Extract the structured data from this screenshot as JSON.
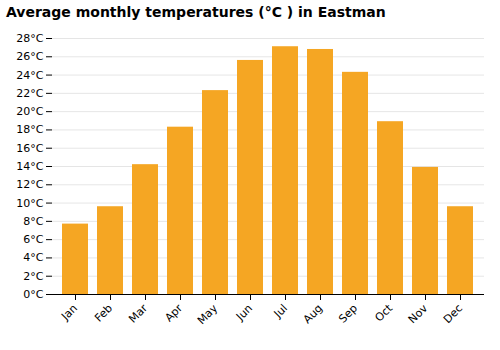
{
  "chart_data": {
    "type": "bar",
    "title": "Average monthly temperatures (°C ) in Eastman",
    "categories": [
      "Jan",
      "Feb",
      "Mar",
      "Apr",
      "May",
      "Jun",
      "Jul",
      "Aug",
      "Sep",
      "Oct",
      "Nov",
      "Dec"
    ],
    "values": [
      7.7,
      9.6,
      14.2,
      18.3,
      22.3,
      25.6,
      27.1,
      26.8,
      24.3,
      18.9,
      13.9,
      9.6
    ],
    "color": "#F5A623",
    "ylim": [
      0,
      28
    ],
    "yticks": [
      {
        "value": 0,
        "label": "0°C"
      },
      {
        "value": 2,
        "label": "2°C"
      },
      {
        "value": 4,
        "label": "4°C"
      },
      {
        "value": 6,
        "label": "6°C"
      },
      {
        "value": 8,
        "label": "8°C"
      },
      {
        "value": 10,
        "label": "10°C"
      },
      {
        "value": 12,
        "label": "12°C"
      },
      {
        "value": 14,
        "label": "14°C"
      },
      {
        "value": 16,
        "label": "16°C"
      },
      {
        "value": 18,
        "label": "18°C"
      },
      {
        "value": 20,
        "label": "20°C"
      },
      {
        "value": 22,
        "label": "22°C"
      },
      {
        "value": 24,
        "label": "24°C"
      },
      {
        "value": 26,
        "label": "26°C"
      },
      {
        "value": 28,
        "label": "28°C"
      }
    ],
    "grid": true
  }
}
